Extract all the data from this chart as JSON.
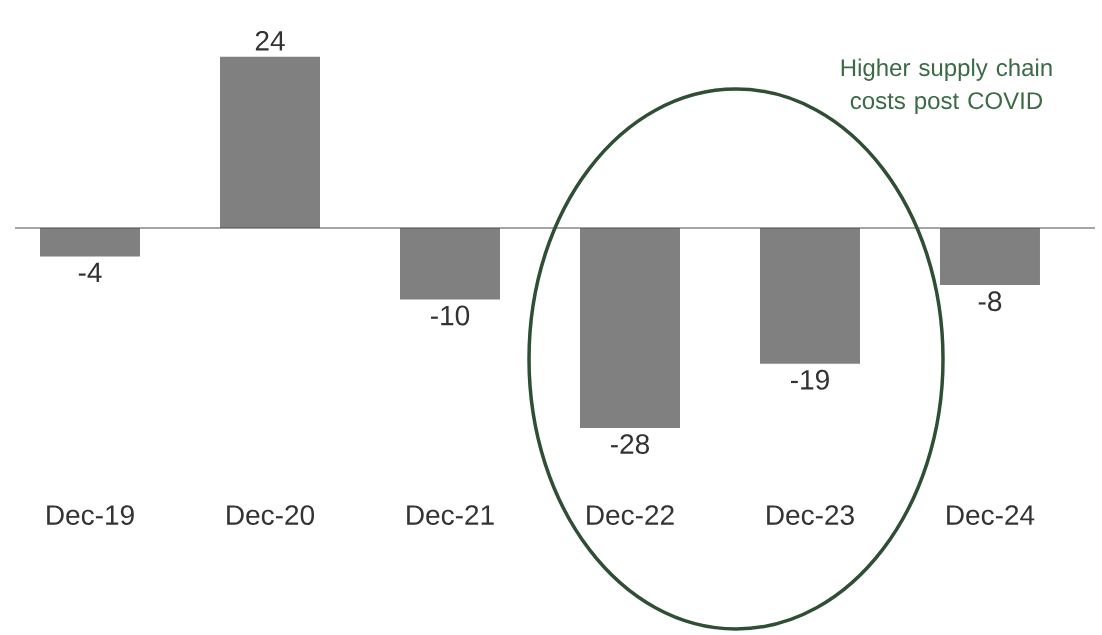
{
  "chart_data": {
    "type": "bar",
    "categories": [
      "Dec-19",
      "Dec-20",
      "Dec-21",
      "Dec-22",
      "Dec-23",
      "Dec-24"
    ],
    "values": [
      -4,
      24,
      -10,
      -28,
      -19,
      -8
    ],
    "color": "#808080",
    "data_labels": true,
    "annotations": [
      "Higher supply chain costs post COVID"
    ]
  }
}
